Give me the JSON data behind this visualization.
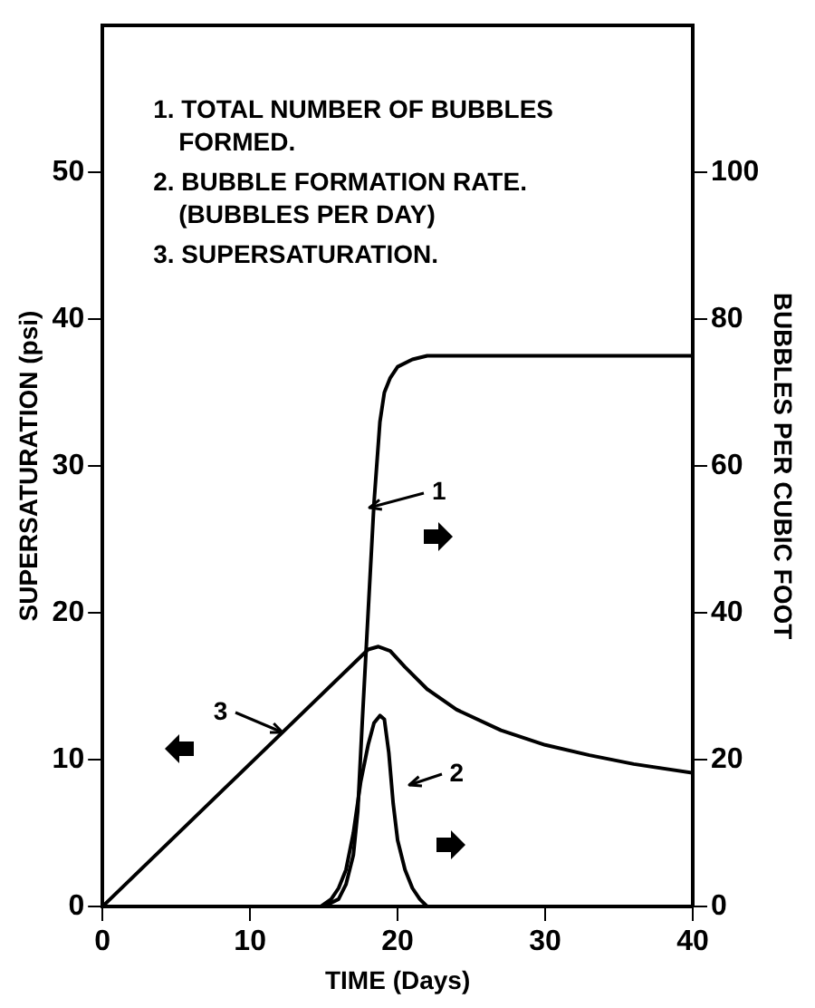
{
  "chart_data": {
    "type": "line",
    "xlabel": "TIME (Days)",
    "ylabel": "SUPERSATURATION (psi)",
    "y2label": "BUBBLES PER CUBIC FOOT",
    "series": [
      {
        "color": "#000000",
        "axis": "y2",
        "x": [
          15,
          16,
          16.5,
          17,
          17.3,
          17.6,
          18,
          18.4,
          18.8,
          19.1,
          19.5,
          20,
          21,
          22,
          30,
          40
        ],
        "values": [
          0,
          1,
          3,
          7,
          13,
          25,
          40,
          55,
          66,
          70,
          72,
          73.5,
          74.5,
          75,
          75,
          75
        ]
      },
      {
        "color": "#000000",
        "axis": "y2",
        "x": [
          14.8,
          15.5,
          16,
          16.5,
          17,
          17.5,
          18,
          18.4,
          18.8,
          19.1,
          19.4,
          19.7,
          20,
          20.5,
          21,
          21.5,
          22
        ],
        "values": [
          0,
          1,
          2.5,
          5,
          10,
          17,
          22,
          25,
          26,
          25.5,
          21,
          14,
          9,
          5,
          2.5,
          1,
          0
        ]
      },
      {
        "color": "#000000",
        "x": [
          0,
          18,
          18.7,
          19.5,
          20.5,
          22,
          24,
          27,
          30,
          33,
          36,
          40
        ],
        "values": [
          0,
          17.5,
          17.7,
          17.4,
          16.3,
          14.8,
          13.4,
          12,
          11,
          10.3,
          9.7,
          9.1
        ]
      }
    ],
    "xlim": [
      0,
      40
    ],
    "xticks": [
      0,
      10,
      20,
      30,
      40
    ],
    "ylim": [
      0,
      60
    ],
    "yticks": [
      0,
      10,
      20,
      30,
      40,
      50
    ],
    "y2lim": [
      0,
      120
    ],
    "y2ticks": [
      0,
      20,
      40,
      60,
      80,
      100
    ],
    "grid": false,
    "legend": false,
    "marker": "none",
    "line_style": "solid",
    "annotations": [
      "1. TOTAL NUMBER OF BUBBLES FORMED.",
      "2. BUBBLE FORMATION RATE. (BUBBLES PER DAY)",
      "3. SUPERSATURATION.",
      "1",
      "2",
      "3"
    ]
  }
}
